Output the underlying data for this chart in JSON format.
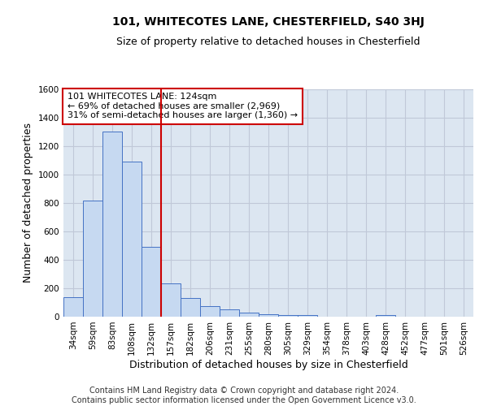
{
  "title": "101, WHITECOTES LANE, CHESTERFIELD, S40 3HJ",
  "subtitle": "Size of property relative to detached houses in Chesterfield",
  "xlabel": "Distribution of detached houses by size in Chesterfield",
  "ylabel": "Number of detached properties",
  "footer_line1": "Contains HM Land Registry data © Crown copyright and database right 2024.",
  "footer_line2": "Contains public sector information licensed under the Open Government Licence v3.0.",
  "annotation_line1": "101 WHITECOTES LANE: 124sqm",
  "annotation_line2": "← 69% of detached houses are smaller (2,969)",
  "annotation_line3": "31% of semi-detached houses are larger (1,360) →",
  "bar_categories": [
    "34sqm",
    "59sqm",
    "83sqm",
    "108sqm",
    "132sqm",
    "157sqm",
    "182sqm",
    "206sqm",
    "231sqm",
    "255sqm",
    "280sqm",
    "305sqm",
    "329sqm",
    "354sqm",
    "378sqm",
    "403sqm",
    "428sqm",
    "452sqm",
    "477sqm",
    "501sqm",
    "526sqm"
  ],
  "bar_values": [
    140,
    820,
    1300,
    1090,
    490,
    235,
    130,
    75,
    50,
    30,
    20,
    10,
    10,
    0,
    0,
    0,
    10,
    0,
    0,
    0,
    0
  ],
  "bar_color": "#c6d9f1",
  "bar_edge_color": "#4472c4",
  "vline_color": "#cc0000",
  "vline_x": 4.5,
  "ylim": [
    0,
    1600
  ],
  "yticks": [
    0,
    200,
    400,
    600,
    800,
    1000,
    1200,
    1400,
    1600
  ],
  "grid_color": "#c0c8d8",
  "plot_bg_color": "#dce6f1",
  "annotation_box_color": "#ffffff",
  "annotation_box_edge": "#cc0000",
  "title_fontsize": 10,
  "subtitle_fontsize": 9,
  "axis_label_fontsize": 9,
  "tick_fontsize": 7.5,
  "annotation_fontsize": 8,
  "footer_fontsize": 7
}
